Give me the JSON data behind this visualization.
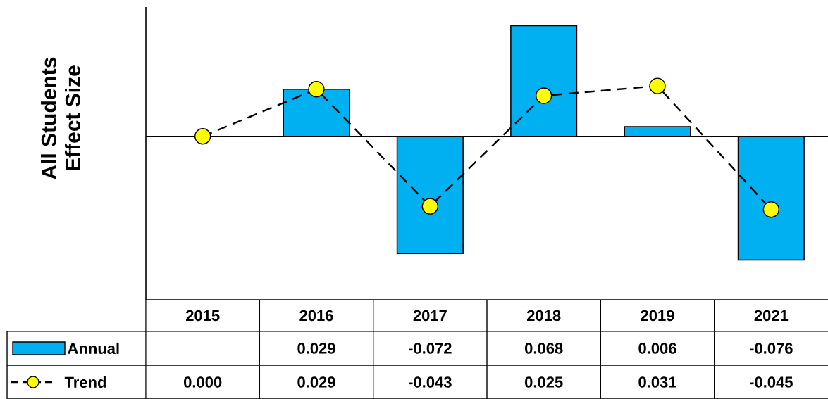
{
  "chart_data": {
    "type": "bar",
    "ylabel": "All Students Effect Size",
    "categories": [
      "2015",
      "2016",
      "2017",
      "2018",
      "2019",
      "2021"
    ],
    "series": [
      {
        "name": "Annual",
        "color": "#00b0f0",
        "values": [
          null,
          0.029,
          -0.072,
          0.068,
          0.006,
          -0.076
        ],
        "value_labels": [
          null,
          "0.029",
          "-0.072",
          "0.068",
          "0.006",
          "-0.076"
        ]
      },
      {
        "name": "Trend",
        "type": "line",
        "color": "#ffff00",
        "marker": "circle",
        "line_style": "dashed",
        "values": [
          0.0,
          0.029,
          -0.043,
          0.025,
          0.031,
          -0.045
        ],
        "value_labels": [
          "0.000",
          "0.029",
          "-0.043",
          "0.025",
          "0.031",
          "-0.045"
        ]
      }
    ],
    "legend": "bottom left"
  }
}
